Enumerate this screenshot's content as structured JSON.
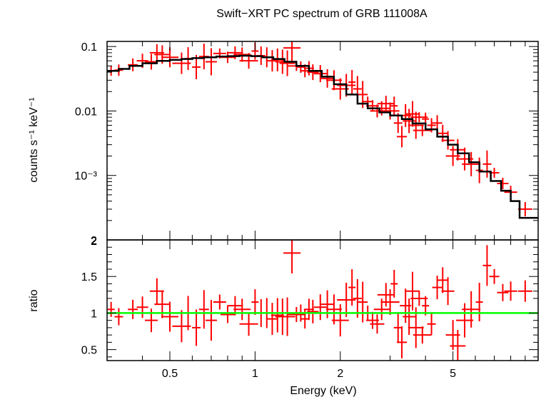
{
  "chart_data": {
    "type": "scatter",
    "title": "Swift−XRT PC spectrum of GRB 111008A",
    "xlabel": "Energy (keV)",
    "x_scale": "log",
    "xlim": [
      0.3,
      10
    ],
    "x_ticks": [
      0.5,
      1,
      2,
      5
    ],
    "x_tick_labels": [
      "0.5",
      "1",
      "2",
      "5"
    ],
    "panels": [
      {
        "name": "spectrum",
        "ylabel": "counts s⁻¹ keV⁻¹",
        "y_scale": "log",
        "ylim": [
          0.0001,
          0.12
        ],
        "y_ticks": [
          0.1,
          0.01,
          0.001
        ],
        "y_tick_labels": [
          "0.1",
          "0.01",
          "10⁻³"
        ],
        "bottom_label": "2",
        "series": [
          {
            "type": "errorbar",
            "color": "#ff0000",
            "points": [
              {
                "x": 0.31,
                "y": 0.042
              },
              {
                "x": 0.33,
                "y": 0.043
              },
              {
                "x": 0.37,
                "y": 0.052
              },
              {
                "x": 0.4,
                "y": 0.06
              },
              {
                "x": 0.43,
                "y": 0.058
              },
              {
                "x": 0.45,
                "y": 0.08
              },
              {
                "x": 0.47,
                "y": 0.075
              },
              {
                "x": 0.5,
                "y": 0.068
              },
              {
                "x": 0.55,
                "y": 0.055
              },
              {
                "x": 0.58,
                "y": 0.065
              },
              {
                "x": 0.62,
                "y": 0.048
              },
              {
                "x": 0.66,
                "y": 0.07
              },
              {
                "x": 0.7,
                "y": 0.058
              },
              {
                "x": 0.75,
                "y": 0.078
              },
              {
                "x": 0.8,
                "y": 0.068
              },
              {
                "x": 0.85,
                "y": 0.08
              },
              {
                "x": 0.9,
                "y": 0.075
              },
              {
                "x": 0.95,
                "y": 0.06
              },
              {
                "x": 1.0,
                "y": 0.085
              },
              {
                "x": 1.05,
                "y": 0.072
              },
              {
                "x": 1.1,
                "y": 0.068
              },
              {
                "x": 1.15,
                "y": 0.06
              },
              {
                "x": 1.2,
                "y": 0.062
              },
              {
                "x": 1.25,
                "y": 0.058
              },
              {
                "x": 1.3,
                "y": 0.055
              },
              {
                "x": 1.35,
                "y": 0.095
              },
              {
                "x": 1.4,
                "y": 0.05
              },
              {
                "x": 1.45,
                "y": 0.048
              },
              {
                "x": 1.5,
                "y": 0.042
              },
              {
                "x": 1.55,
                "y": 0.046
              },
              {
                "x": 1.6,
                "y": 0.04
              },
              {
                "x": 1.7,
                "y": 0.038
              },
              {
                "x": 1.8,
                "y": 0.032
              },
              {
                "x": 1.9,
                "y": 0.03
              },
              {
                "x": 2.0,
                "y": 0.022
              },
              {
                "x": 2.1,
                "y": 0.025
              },
              {
                "x": 2.2,
                "y": 0.028
              },
              {
                "x": 2.3,
                "y": 0.022
              },
              {
                "x": 2.4,
                "y": 0.018
              },
              {
                "x": 2.5,
                "y": 0.014
              },
              {
                "x": 2.6,
                "y": 0.012
              },
              {
                "x": 2.7,
                "y": 0.01
              },
              {
                "x": 2.8,
                "y": 0.011
              },
              {
                "x": 2.9,
                "y": 0.013
              },
              {
                "x": 3.0,
                "y": 0.01
              },
              {
                "x": 3.1,
                "y": 0.012
              },
              {
                "x": 3.2,
                "y": 0.0065
              },
              {
                "x": 3.3,
                "y": 0.004
              },
              {
                "x": 3.4,
                "y": 0.0085
              },
              {
                "x": 3.5,
                "y": 0.007
              },
              {
                "x": 3.6,
                "y": 0.009
              },
              {
                "x": 3.7,
                "y": 0.006
              },
              {
                "x": 3.8,
                "y": 0.008
              },
              {
                "x": 3.9,
                "y": 0.005
              },
              {
                "x": 4.0,
                "y": 0.0075
              },
              {
                "x": 4.2,
                "y": 0.006
              },
              {
                "x": 4.4,
                "y": 0.0065
              },
              {
                "x": 4.6,
                "y": 0.0045
              },
              {
                "x": 4.8,
                "y": 0.0035
              },
              {
                "x": 5.0,
                "y": 0.002
              },
              {
                "x": 5.2,
                "y": 0.0025
              },
              {
                "x": 5.5,
                "y": 0.0018
              },
              {
                "x": 5.8,
                "y": 0.0015
              },
              {
                "x": 6.2,
                "y": 0.0012
              },
              {
                "x": 6.6,
                "y": 0.0015
              },
              {
                "x": 7.0,
                "y": 0.0011
              },
              {
                "x": 7.5,
                "y": 0.00075
              },
              {
                "x": 8.0,
                "y": 0.00055
              },
              {
                "x": 9.0,
                "y": 0.0003
              }
            ]
          },
          {
            "type": "step",
            "color": "#000000",
            "edges": [
              0.3,
              0.33,
              0.36,
              0.4,
              0.45,
              0.5,
              0.55,
              0.6,
              0.66,
              0.73,
              0.8,
              0.88,
              0.97,
              1.06,
              1.16,
              1.27,
              1.4,
              1.55,
              1.72,
              1.9,
              2.1,
              2.3,
              2.5,
              2.75,
              3.0,
              3.3,
              3.6,
              4.0,
              4.4,
              4.8,
              5.2,
              5.7,
              6.2,
              6.8,
              7.4,
              8.0,
              8.6,
              10.0
            ],
            "values": [
              0.042,
              0.045,
              0.05,
              0.055,
              0.06,
              0.062,
              0.064,
              0.066,
              0.068,
              0.07,
              0.071,
              0.072,
              0.071,
              0.068,
              0.064,
              0.058,
              0.05,
              0.042,
              0.034,
              0.026,
              0.018,
              0.013,
              0.011,
              0.0095,
              0.0085,
              0.0075,
              0.0064,
              0.0052,
              0.004,
              0.003,
              0.0022,
              0.0016,
              0.00115,
              0.00082,
              0.00058,
              0.0004,
              0.00022
            ]
          }
        ]
      },
      {
        "name": "ratio",
        "ylabel": "ratio",
        "y_scale": "linear",
        "ylim": [
          0.35,
          2.0
        ],
        "y_ticks": [
          0.5,
          1,
          1.5,
          2
        ],
        "y_tick_labels": [
          "0.5",
          "1",
          "1.5",
          "2"
        ],
        "series": [
          {
            "type": "errorbar",
            "color": "#ff0000",
            "points": [
              {
                "x": 0.31,
                "y": 1.05
              },
              {
                "x": 0.33,
                "y": 0.95
              },
              {
                "x": 0.37,
                "y": 1.05
              },
              {
                "x": 0.4,
                "y": 1.08
              },
              {
                "x": 0.43,
                "y": 0.9
              },
              {
                "x": 0.45,
                "y": 1.3
              },
              {
                "x": 0.47,
                "y": 1.12
              },
              {
                "x": 0.5,
                "y": 0.95
              },
              {
                "x": 0.55,
                "y": 0.82
              },
              {
                "x": 0.58,
                "y": 1.0
              },
              {
                "x": 0.62,
                "y": 0.8
              },
              {
                "x": 0.66,
                "y": 1.05
              },
              {
                "x": 0.7,
                "y": 0.9
              },
              {
                "x": 0.75,
                "y": 1.15
              },
              {
                "x": 0.8,
                "y": 0.98
              },
              {
                "x": 0.85,
                "y": 1.1
              },
              {
                "x": 0.9,
                "y": 1.05
              },
              {
                "x": 0.95,
                "y": 0.85
              },
              {
                "x": 1.0,
                "y": 1.15
              },
              {
                "x": 1.05,
                "y": 1.0
              },
              {
                "x": 1.1,
                "y": 1.0
              },
              {
                "x": 1.15,
                "y": 0.92
              },
              {
                "x": 1.2,
                "y": 0.97
              },
              {
                "x": 1.25,
                "y": 0.95
              },
              {
                "x": 1.3,
                "y": 0.95
              },
              {
                "x": 1.35,
                "y": 1.82
              },
              {
                "x": 1.4,
                "y": 0.98
              },
              {
                "x": 1.45,
                "y": 1.0
              },
              {
                "x": 1.5,
                "y": 0.92
              },
              {
                "x": 1.55,
                "y": 1.05
              },
              {
                "x": 1.6,
                "y": 1.02
              },
              {
                "x": 1.7,
                "y": 1.08
              },
              {
                "x": 1.8,
                "y": 1.12
              },
              {
                "x": 1.9,
                "y": 1.05
              },
              {
                "x": 2.0,
                "y": 0.9
              },
              {
                "x": 2.1,
                "y": 1.18
              },
              {
                "x": 2.2,
                "y": 1.35
              },
              {
                "x": 2.3,
                "y": 1.2
              },
              {
                "x": 2.4,
                "y": 1.15
              },
              {
                "x": 2.5,
                "y": 1.0
              },
              {
                "x": 2.6,
                "y": 0.9
              },
              {
                "x": 2.7,
                "y": 0.85
              },
              {
                "x": 2.8,
                "y": 1.05
              },
              {
                "x": 2.9,
                "y": 1.25
              },
              {
                "x": 3.0,
                "y": 1.15
              },
              {
                "x": 3.1,
                "y": 1.4
              },
              {
                "x": 3.2,
                "y": 0.8
              },
              {
                "x": 3.3,
                "y": 0.6
              },
              {
                "x": 3.4,
                "y": 1.1
              },
              {
                "x": 3.5,
                "y": 0.95
              },
              {
                "x": 3.6,
                "y": 1.3
              },
              {
                "x": 3.7,
                "y": 0.8
              },
              {
                "x": 3.8,
                "y": 1.2
              },
              {
                "x": 3.9,
                "y": 0.7
              },
              {
                "x": 4.0,
                "y": 1.1
              },
              {
                "x": 4.2,
                "y": 0.85
              },
              {
                "x": 4.4,
                "y": 1.35
              },
              {
                "x": 4.6,
                "y": 1.45
              },
              {
                "x": 4.8,
                "y": 1.3
              },
              {
                "x": 5.0,
                "y": 0.7
              },
              {
                "x": 5.2,
                "y": 0.55
              },
              {
                "x": 5.5,
                "y": 0.9
              },
              {
                "x": 5.8,
                "y": 1.05
              },
              {
                "x": 6.2,
                "y": 1.15
              },
              {
                "x": 6.6,
                "y": 1.65
              },
              {
                "x": 7.0,
                "y": 1.5
              },
              {
                "x": 7.5,
                "y": 1.28
              },
              {
                "x": 8.0,
                "y": 1.3
              },
              {
                "x": 9.0,
                "y": 1.3
              }
            ]
          },
          {
            "type": "hline",
            "color": "#00ff00",
            "y": 1
          }
        ]
      }
    ]
  }
}
